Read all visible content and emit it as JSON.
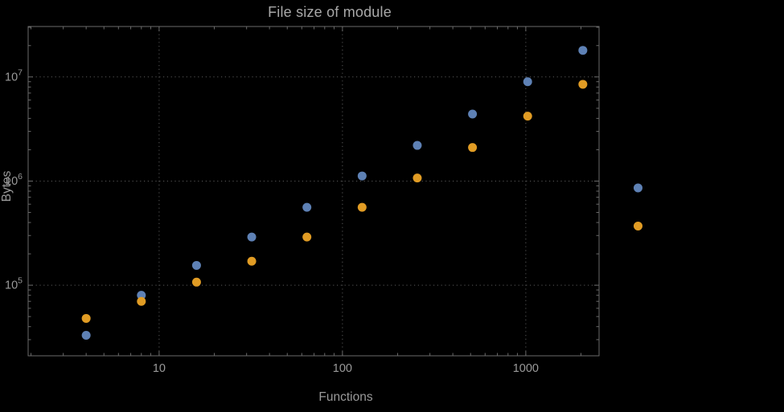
{
  "page": {
    "background": "#000000"
  },
  "chart": {
    "title": "File size of module",
    "xlabel": "Functions",
    "ylabel": "Bytes",
    "colors": {
      "frame": "#6a6a6a",
      "grid": "#585858",
      "tick_label": "#9a9a9a",
      "title": "#a8a8a8",
      "axis_label": "#9a9a9a",
      "series_blue": "#5e81b5",
      "series_orange": "#e19c24"
    }
  },
  "chart_data": {
    "type": "scatter",
    "title": "File size of module",
    "xlabel": "Functions",
    "ylabel": "Bytes",
    "x_scale": "log",
    "y_scale": "log",
    "grid": "dotted lines at major ticks",
    "legend": "none",
    "xlim": [
      1.93,
      2510
    ],
    "ylim": [
      21000,
      30500000
    ],
    "x": [
      4,
      8,
      16,
      32,
      64,
      128,
      256,
      512,
      1024,
      2048,
      4096
    ],
    "series": [
      {
        "name": "series-1-blue",
        "color": "#5e81b5",
        "values": [
          33000,
          80000,
          155000,
          290000,
          560000,
          1120000,
          2200000,
          4400000,
          9000000,
          18000000,
          860000
        ]
      },
      {
        "name": "series-2-orange",
        "color": "#e19c24",
        "values": [
          48000,
          70000,
          107000,
          170000,
          290000,
          560000,
          1070000,
          2100000,
          4200000,
          8500000,
          370000
        ]
      }
    ],
    "x_ticks": [
      {
        "value": 10,
        "label": "10"
      },
      {
        "value": 100,
        "label": "100"
      },
      {
        "value": 1000,
        "label": "1000"
      }
    ],
    "y_ticks": [
      {
        "value": 100000,
        "base": "10",
        "exp": "5"
      },
      {
        "value": 1000000,
        "base": "10",
        "exp": "6"
      },
      {
        "value": 10000000,
        "base": "10",
        "exp": "7"
      }
    ]
  }
}
